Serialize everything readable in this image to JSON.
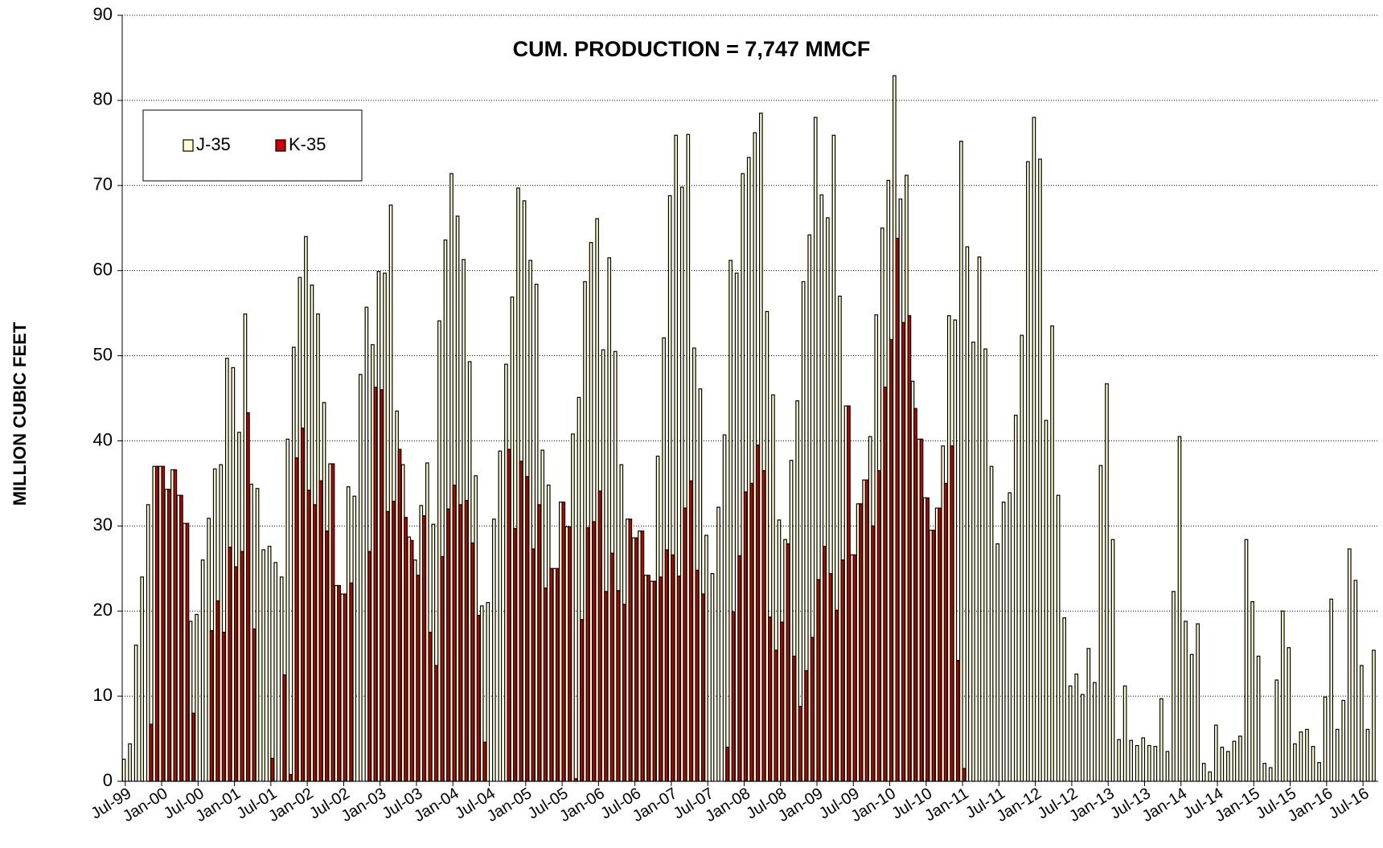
{
  "chart_data": {
    "type": "bar",
    "title": "CUM. PRODUCTION = 7,747 MMCF",
    "y_label": "MILLION CUBIC FEET",
    "ylim": [
      0,
      90
    ],
    "yticks": [
      0,
      10,
      20,
      30,
      40,
      50,
      60,
      70,
      80,
      90
    ],
    "grid": true,
    "legend": "upper left",
    "categories": [
      "Jul-99",
      null,
      null,
      null,
      null,
      null,
      "Jan-00",
      null,
      null,
      null,
      null,
      null,
      "Jul-00",
      null,
      null,
      null,
      null,
      null,
      "Jan-01",
      null,
      null,
      null,
      null,
      null,
      "Jul-01",
      null,
      null,
      null,
      null,
      null,
      "Jan-02",
      null,
      null,
      null,
      null,
      null,
      "Jul-02",
      null,
      null,
      null,
      null,
      null,
      "Jan-03",
      null,
      null,
      null,
      null,
      null,
      "Jul-03",
      null,
      null,
      null,
      null,
      null,
      "Jan-04",
      null,
      null,
      null,
      null,
      null,
      "Jul-04",
      null,
      null,
      null,
      null,
      null,
      "Jan-05",
      null,
      null,
      null,
      null,
      null,
      "Jul-05",
      null,
      null,
      null,
      null,
      null,
      "Jan-06",
      null,
      null,
      null,
      null,
      null,
      "Jul-06",
      null,
      null,
      null,
      null,
      null,
      "Jan-07",
      null,
      null,
      null,
      null,
      null,
      "Jul-07",
      null,
      null,
      null,
      null,
      null,
      "Jan-08",
      null,
      null,
      null,
      null,
      null,
      "Jul-08",
      null,
      null,
      null,
      null,
      null,
      "Jan-09",
      null,
      null,
      null,
      null,
      null,
      "Jul-09",
      null,
      null,
      null,
      null,
      null,
      "Jan-10",
      null,
      null,
      null,
      null,
      null,
      "Jul-10",
      null,
      null,
      null,
      null,
      null,
      "Jan-11",
      null,
      null,
      null,
      null,
      null,
      "Jul-11",
      null,
      null,
      null,
      null,
      null,
      "Jan-12",
      null,
      null,
      null,
      null,
      null,
      "Jul-12",
      null,
      null,
      null,
      null,
      null,
      "Jan-13",
      null,
      null,
      null,
      null,
      null,
      "Jul-13",
      null,
      null,
      null,
      null,
      null,
      "Jan-14",
      null,
      null,
      null,
      null,
      null,
      "Jul-14",
      null,
      null,
      null,
      null,
      null,
      "Jan-15",
      null,
      null,
      null,
      null,
      null,
      "Jul-15",
      null,
      null,
      null,
      null,
      null,
      "Jan-16",
      null,
      null,
      null,
      null,
      null,
      "Jul-16",
      null,
      null
    ],
    "series": [
      {
        "name": "J-35",
        "color": "#ffffcc",
        "values": [
          2.6,
          4.4,
          16,
          24,
          32.5,
          37,
          37,
          34.3,
          36.6,
          33.6,
          30.3,
          18.8,
          19.6,
          26,
          30.9,
          36.7,
          37.2,
          49.7,
          48.6,
          41,
          54.9,
          34.9,
          34.4,
          27.2,
          27.6,
          25.7,
          24,
          40.2,
          51,
          59.2,
          64,
          58.3,
          54.9,
          44.5,
          37.3,
          23,
          22,
          34.6,
          33.5,
          47.8,
          55.7,
          51.3,
          59.9,
          59.7,
          67.7,
          43.5,
          37.2,
          28.7,
          26,
          32.4,
          37.4,
          30.2,
          54.1,
          63.6,
          71.4,
          66.4,
          61.3,
          49.3,
          35.9,
          20.6,
          21,
          30.8,
          38.8,
          49,
          56.9,
          69.7,
          68.2,
          61.2,
          58.4,
          38.9,
          34.8,
          25,
          32.8,
          29.9,
          40.8,
          45.1,
          58.7,
          63.3,
          66.1,
          50.7,
          61.5,
          50.5,
          37.2,
          30.8,
          28.6,
          29.4,
          24.2,
          23.5,
          38.2,
          52.1,
          68.8,
          75.9,
          69.8,
          76,
          50.9,
          46.1,
          28.9,
          24.4,
          32.2,
          40.7,
          61.2,
          59.7,
          71.4,
          73.3,
          76.2,
          78.5,
          55.2,
          45.4,
          30.7,
          28.4,
          37.7,
          44.7,
          58.7,
          64.2,
          78,
          68.9,
          66.2,
          75.9,
          57,
          44.1,
          26.6,
          32.6,
          35.4,
          40.5,
          54.8,
          65,
          70.6,
          82.9,
          68.4,
          71.2,
          47,
          40.2,
          33.3,
          29.5,
          32.1,
          39.4,
          54.7,
          54.2,
          75.2,
          62.8,
          51.6,
          61.6,
          50.8,
          37,
          27.9,
          32.8,
          33.9,
          43,
          52.4,
          72.8,
          78,
          73.1,
          42.4,
          53.5,
          33.6,
          19.2,
          11.2,
          12.6,
          10.2,
          15.6,
          11.6,
          37.1,
          46.7,
          28.4,
          4.9,
          11.2,
          4.8,
          4.2,
          5.1,
          4.2,
          4.1,
          9.7,
          3.5,
          22.3,
          40.5,
          18.8,
          14.9,
          18.5,
          2.1,
          1.1,
          6.6,
          4,
          3.5,
          4.7,
          5.3,
          28.4,
          21.1,
          14.7,
          2.1,
          1.6,
          11.9,
          20,
          15.7,
          4.4,
          5.8,
          6.1,
          4.1,
          2.2,
          9.9,
          21.4,
          6.1,
          9.5,
          27.3,
          23.6,
          13.6,
          6.1,
          15.4
        ]
      },
      {
        "name": "K-35",
        "color": "#cc0000",
        "values": [
          0,
          0,
          0,
          0,
          6.7,
          37,
          37,
          34.3,
          36.6,
          33.6,
          30.3,
          8,
          0,
          0,
          17.7,
          21.2,
          17.5,
          27.5,
          25.2,
          27,
          43.3,
          17.9,
          0,
          0,
          2.7,
          0,
          12.5,
          0.8,
          38,
          41.5,
          34.2,
          32.5,
          35.3,
          29.4,
          37.3,
          23,
          22,
          23.3,
          0,
          0,
          27,
          46.3,
          46,
          31.7,
          32.9,
          39,
          31,
          28.3,
          24.2,
          31.2,
          17.5,
          13.6,
          26.4,
          32,
          34.8,
          32.5,
          33,
          28,
          19.5,
          4.6,
          0,
          0,
          0,
          39,
          29.7,
          37.6,
          35.8,
          27.3,
          32.5,
          22.7,
          25,
          25,
          32.8,
          29.9,
          0.3,
          19,
          29.8,
          30.5,
          34.1,
          22.3,
          26.8,
          22.4,
          20.8,
          30.8,
          28.6,
          29.4,
          24.2,
          23.5,
          24,
          27.2,
          26.6,
          24.1,
          32.1,
          35.3,
          24.8,
          22,
          0,
          0,
          0,
          4,
          19.9,
          26.5,
          34,
          35,
          39.5,
          36.5,
          19.3,
          15.4,
          18.7,
          27.9,
          14.7,
          8.8,
          13,
          16.9,
          23.7,
          27.6,
          24.4,
          20.1,
          26,
          44.1,
          26.6,
          32.6,
          35.4,
          30,
          36.5,
          46.3,
          51.9,
          63.8,
          53.9,
          54.7,
          43.8,
          40.2,
          33.3,
          29.5,
          32.1,
          35,
          39.4,
          14.2,
          1.5,
          0,
          0,
          0,
          0,
          0,
          0,
          0,
          0,
          0,
          0,
          0,
          0,
          0,
          0,
          0,
          0,
          0,
          0,
          0,
          0,
          0,
          0,
          0,
          0,
          0,
          0,
          0,
          0,
          0,
          0,
          0,
          0,
          0,
          0,
          0,
          0,
          0,
          0,
          0,
          0,
          0,
          0,
          0,
          0,
          0,
          0,
          0,
          0,
          0,
          0,
          0,
          0,
          0,
          0,
          0,
          0,
          0,
          0,
          0,
          0,
          0,
          0,
          0,
          0,
          0,
          0,
          0,
          0
        ]
      }
    ]
  }
}
